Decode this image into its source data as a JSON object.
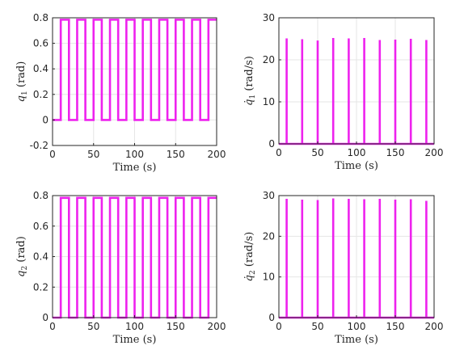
{
  "chart_data": [
    {
      "type": "line",
      "xlabel": "Time (s)",
      "ylabel_symbol": "q",
      "ylabel_sub": "1",
      "ylabel_unit": "(rad)",
      "xlim": [
        0,
        200
      ],
      "ylim": [
        -0.2,
        0.8
      ],
      "xticks": [
        "0",
        "50",
        "100",
        "150",
        "200"
      ],
      "yticks": [
        "-0.2",
        "0",
        "0.2",
        "0.4",
        "0.6",
        "0.8"
      ],
      "grid": true,
      "series": [
        {
          "color": "#ee22ee",
          "x": [
            0,
            10,
            10,
            20,
            20,
            30,
            30,
            40,
            40,
            50,
            50,
            60,
            60,
            70,
            70,
            80,
            80,
            90,
            90,
            100,
            100,
            110,
            110,
            120,
            120,
            130,
            130,
            140,
            140,
            150,
            150,
            160,
            160,
            170,
            170,
            180,
            180,
            190,
            190,
            200
          ],
          "y": [
            0,
            0,
            0.785,
            0.785,
            0,
            0,
            0.785,
            0.785,
            0,
            0,
            0.785,
            0.785,
            0,
            0,
            0.785,
            0.785,
            0,
            0,
            0.785,
            0.785,
            0,
            0,
            0.785,
            0.785,
            0,
            0,
            0.785,
            0.785,
            0,
            0,
            0.785,
            0.785,
            0,
            0,
            0.785,
            0.785,
            0,
            0,
            0.785,
            0.785
          ]
        }
      ]
    },
    {
      "type": "line",
      "xlabel": "Time (s)",
      "ylabel_symbol": "q̇",
      "ylabel_sub": "1",
      "ylabel_unit": "(rad/s)",
      "xlim": [
        0,
        200
      ],
      "ylim": [
        0,
        30
      ],
      "xticks": [
        "0",
        "50",
        "100",
        "150",
        "200"
      ],
      "yticks": [
        "0",
        "10",
        "20",
        "30"
      ],
      "grid": true,
      "series": [
        {
          "color": "#ee22ee",
          "baseline": 0,
          "spike_x": [
            10,
            30,
            50,
            70,
            90,
            110,
            130,
            150,
            170,
            190
          ],
          "spike_y": [
            25.1,
            24.9,
            24.6,
            25.2,
            25.1,
            25.2,
            24.7,
            24.8,
            25.0,
            24.7
          ]
        }
      ]
    },
    {
      "type": "line",
      "xlabel": "Time (s)",
      "ylabel_symbol": "q",
      "ylabel_sub": "2",
      "ylabel_unit": "(rad)",
      "xlim": [
        0,
        200
      ],
      "ylim": [
        0,
        0.8
      ],
      "xticks": [
        "0",
        "50",
        "100",
        "150",
        "200"
      ],
      "yticks": [
        "0",
        "0.2",
        "0.4",
        "0.6",
        "0.8"
      ],
      "grid": true,
      "series": [
        {
          "color": "#ee22ee",
          "x": [
            0,
            10,
            10,
            20,
            20,
            30,
            30,
            40,
            40,
            50,
            50,
            60,
            60,
            70,
            70,
            80,
            80,
            90,
            90,
            100,
            100,
            110,
            110,
            120,
            120,
            130,
            130,
            140,
            140,
            150,
            150,
            160,
            160,
            170,
            170,
            180,
            180,
            190,
            190,
            200
          ],
          "y": [
            0,
            0,
            0.785,
            0.785,
            0,
            0,
            0.785,
            0.785,
            0,
            0,
            0.785,
            0.785,
            0,
            0,
            0.785,
            0.785,
            0,
            0,
            0.785,
            0.785,
            0,
            0,
            0.785,
            0.785,
            0,
            0,
            0.785,
            0.785,
            0,
            0,
            0.785,
            0.785,
            0,
            0,
            0.785,
            0.785,
            0,
            0,
            0.785,
            0.785
          ]
        }
      ]
    },
    {
      "type": "line",
      "xlabel": "Time (s)",
      "ylabel_symbol": "q̇",
      "ylabel_sub": "2",
      "ylabel_unit": "(rad/s)",
      "xlim": [
        0,
        200
      ],
      "ylim": [
        0,
        30
      ],
      "xticks": [
        "0",
        "50",
        "100",
        "150",
        "200"
      ],
      "yticks": [
        "0",
        "10",
        "20",
        "30"
      ],
      "grid": true,
      "series": [
        {
          "color": "#ee22ee",
          "baseline": 0,
          "spike_x": [
            10,
            30,
            50,
            70,
            90,
            110,
            130,
            150,
            170,
            190
          ],
          "spike_y": [
            29.2,
            29.0,
            28.9,
            29.3,
            29.2,
            29.1,
            29.2,
            29.0,
            29.1,
            28.7
          ]
        }
      ]
    }
  ]
}
